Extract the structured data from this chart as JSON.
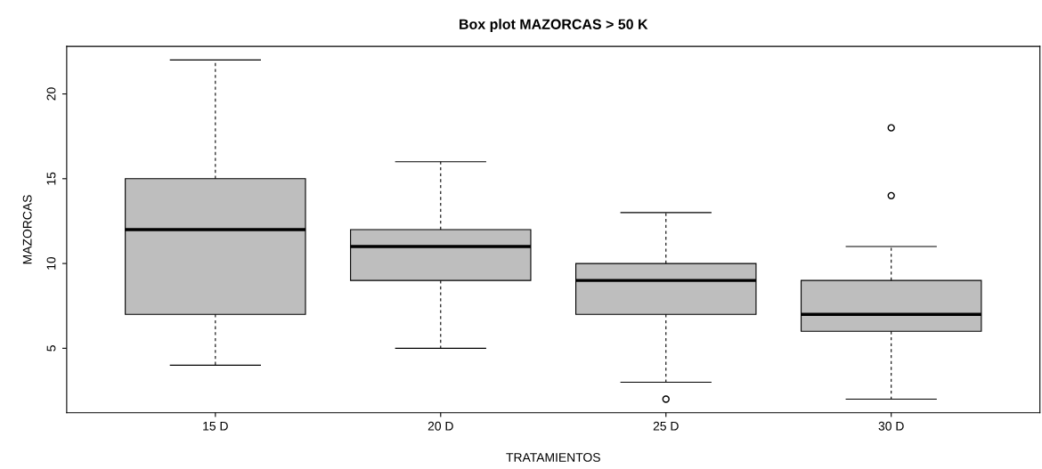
{
  "chart_data": {
    "type": "box",
    "title": "Box plot MAZORCAS > 50 K",
    "xlabel": "TRATAMIENTOS",
    "ylabel": "MAZORCAS",
    "categories": [
      "15 D",
      "20 D",
      "25 D",
      "30 D"
    ],
    "boxes": [
      {
        "low": 4,
        "q1": 7,
        "median": 12,
        "q3": 15,
        "high": 22
      },
      {
        "low": 5,
        "q1": 9,
        "median": 11,
        "q3": 12,
        "high": 16
      },
      {
        "low": 3,
        "q1": 7,
        "median": 9,
        "q3": 10,
        "high": 13,
        "outliers": [
          2
        ]
      },
      {
        "low": 2,
        "q1": 6,
        "median": 7,
        "q3": 9,
        "high": 11,
        "outliers": [
          14,
          18
        ]
      }
    ],
    "color": "#bebebe",
    "ylim": [
      1.2,
      22.8
    ],
    "yticks": [
      5,
      10,
      15,
      20
    ],
    "grid": false
  }
}
